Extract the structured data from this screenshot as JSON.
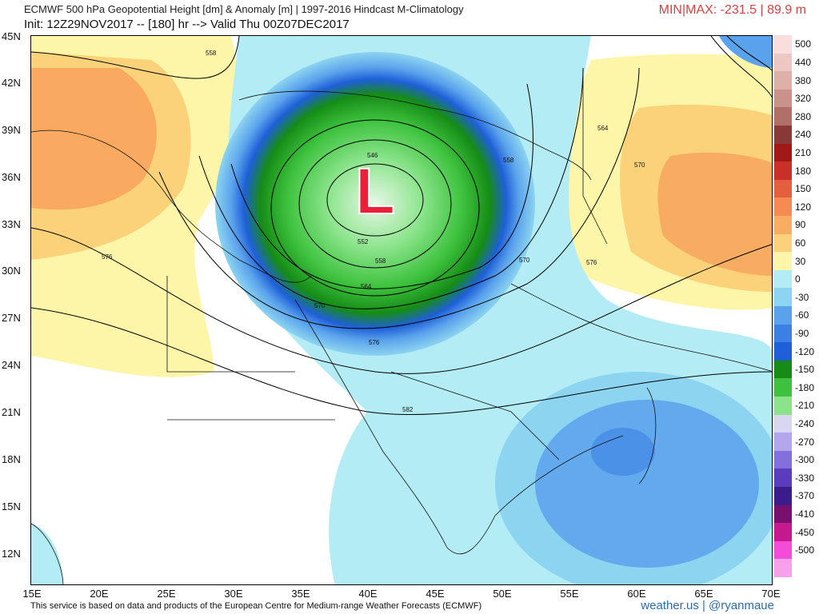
{
  "header": {
    "title": "ECMWF 500 hPa Geopotential Height [dm] & Anomaly [m] | 1997-2016 Hindcast M-Climatology",
    "subtitle": "Init: 12Z29NOV2017 -- [180] hr --> Valid Thu 00Z07DEC2017",
    "minmax": "MIN|MAX: -231.5 | 89.9 m"
  },
  "map": {
    "lat_labels": [
      "45N",
      "42N",
      "39N",
      "36N",
      "33N",
      "30N",
      "27N",
      "24N",
      "21N",
      "18N",
      "15N",
      "12N"
    ],
    "lon_labels": [
      "15E",
      "20E",
      "25E",
      "30E",
      "35E",
      "40E",
      "45E",
      "50E",
      "55E",
      "60E",
      "65E",
      "70E"
    ],
    "low_marker": "L",
    "contour_labels": [
      "558",
      "546",
      "552",
      "558",
      "564",
      "570",
      "576",
      "582",
      "558",
      "564",
      "570",
      "570",
      "576",
      "576"
    ],
    "colors": {
      "positive_light": "#fdf6a8",
      "positive_mid": "#fbd27a",
      "positive_strong": "#f8a35c",
      "negative_light": "#b3ecf5",
      "negative_blue": "#5aa2ec",
      "negative_deep": "#1f5fd8",
      "negative_green": "#1ea61e",
      "negative_lightgreen": "#8be48b",
      "low_marker": "#e8203a"
    }
  },
  "colorbar": {
    "labels": [
      "500",
      "440",
      "380",
      "320",
      "280",
      "240",
      "210",
      "180",
      "150",
      "120",
      "90",
      "60",
      "30",
      "0",
      "-30",
      "-60",
      "-90",
      "-120",
      "-150",
      "-180",
      "-210",
      "-240",
      "-270",
      "-300",
      "-330",
      "-370",
      "-410",
      "-450",
      "-500"
    ],
    "colors": [
      "#f9dede",
      "#ecc7c3",
      "#ddb0a8",
      "#c9928a",
      "#b07068",
      "#8a3a36",
      "#a01818",
      "#c83028",
      "#e35f3e",
      "#f58a52",
      "#f9ad62",
      "#fbd27a",
      "#fdf6a8",
      "#b3ecf5",
      "#8cd4f0",
      "#5aa2ec",
      "#3d80e4",
      "#1f5fd8",
      "#168c16",
      "#3ec23e",
      "#8be48b",
      "#d7d7f2",
      "#b4a6ec",
      "#8470dc",
      "#5a3cbc",
      "#3a1d8a",
      "#7a106e",
      "#c81890",
      "#f44cd8",
      "#f9a0ec"
    ]
  },
  "footer": {
    "credit": "This service is based on data and products of the European Centre for Medium-range Weather Forecasts (ECMWF)",
    "brand": "weather.us | @ryanmaue"
  }
}
